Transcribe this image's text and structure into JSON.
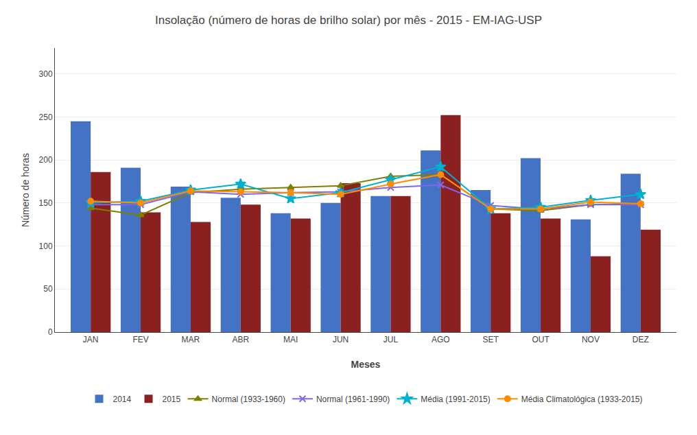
{
  "chart_data": {
    "type": "bar",
    "title": "Insolação (número de horas de brilho solar) por mês - 2015 - EM-IAG-USP",
    "xlabel": "Meses",
    "ylabel": "Número de horas",
    "categories": [
      "JAN",
      "FEV",
      "MAR",
      "ABR",
      "MAI",
      "JUN",
      "JUL",
      "AGO",
      "SET",
      "OUT",
      "NOV",
      "DEZ"
    ],
    "series": [
      {
        "name": "2014",
        "type": "bar",
        "color": "#4472C4",
        "values": [
          245,
          191,
          169,
          156,
          138,
          150,
          158,
          211,
          165,
          202,
          131,
          184
        ]
      },
      {
        "name": "2015",
        "type": "bar",
        "color": "#8B2020",
        "values": [
          186,
          139,
          128,
          148,
          132,
          173,
          158,
          252,
          138,
          132,
          88,
          119
        ]
      },
      {
        "name": "Normal (1933-1960)",
        "type": "line",
        "color": "#7F7F00",
        "marker": "triangle",
        "values": [
          144,
          136,
          162,
          166,
          168,
          170,
          181,
          183,
          143,
          141,
          148,
          149
        ]
      },
      {
        "name": "Normal (1961-1990)",
        "type": "line",
        "color": "#7B68EE",
        "marker": "x",
        "values": [
          148,
          148,
          163,
          160,
          162,
          163,
          168,
          171,
          147,
          143,
          148,
          148
        ]
      },
      {
        "name": "Média (1991-2015)",
        "type": "line",
        "color": "#00B0D0",
        "marker": "star",
        "values": [
          150,
          152,
          165,
          172,
          155,
          162,
          177,
          192,
          143,
          145,
          153,
          160
        ]
      },
      {
        "name": "Média Climatológica (1933-2015)",
        "type": "line",
        "color": "#FF8C00",
        "marker": "circle",
        "values": [
          152,
          150,
          164,
          163,
          162,
          160,
          172,
          183,
          143,
          143,
          151,
          149
        ]
      }
    ],
    "ylim": [
      0,
      330
    ],
    "yticks": [
      0,
      50,
      100,
      150,
      200,
      250,
      300
    ],
    "grid": true,
    "legend": "bottom"
  }
}
